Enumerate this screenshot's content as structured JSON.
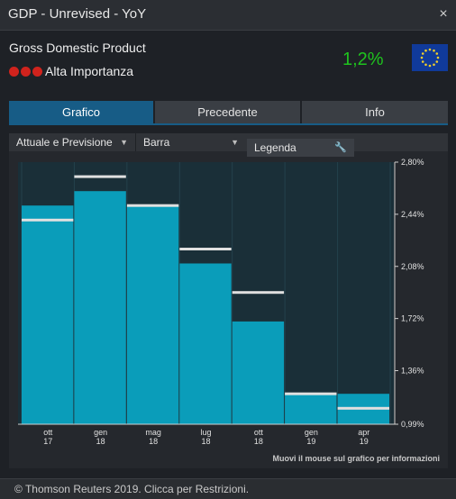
{
  "window": {
    "title": "GDP - Unrevised - YoY",
    "close_symbol": "×"
  },
  "indicator": {
    "name": "Gross Domestic Product",
    "importance_label": "Alta Importanza",
    "importance_level": 3,
    "value": "1,2%",
    "value_color": "#1ec31e",
    "flag": "eu-flag-icon"
  },
  "tabs": [
    {
      "label": "Grafico",
      "active": true
    },
    {
      "label": "Precedente",
      "active": false
    },
    {
      "label": "Info",
      "active": false
    }
  ],
  "controls": {
    "series_dropdown": "Attuale e Previsione",
    "type_dropdown": "Barra",
    "legend_button": "Legenda"
  },
  "chart_data": {
    "type": "bar",
    "categories": [
      "ott\n17",
      "gen\n18",
      "mag\n18",
      "lug\n18",
      "ott\n18",
      "gen\n19",
      "apr\n19"
    ],
    "series": [
      {
        "values": [
          2.5,
          2.6,
          2.5,
          2.1,
          1.7,
          1.2,
          1.2
        ],
        "color": "#0a9dba"
      },
      {
        "values": [
          2.4,
          2.7,
          2.5,
          2.2,
          1.9,
          1.2,
          1.1
        ],
        "color": "#e0e0e0"
      }
    ],
    "ylim": [
      0.99,
      2.8
    ],
    "yticks": [
      "2,80%",
      "2,44%",
      "2,08%",
      "1,72%",
      "1,36%",
      "0,99%"
    ],
    "ytick_values": [
      2.8,
      2.44,
      2.08,
      1.72,
      1.36,
      0.99
    ],
    "axis_side": "right",
    "plot_background": "#1a2f38"
  },
  "chart_hint": "Muovi il mouse sul grafico per informazioni",
  "footer": {
    "text": "© Thomson Reuters 2019. Clicca per Restrizioni."
  }
}
